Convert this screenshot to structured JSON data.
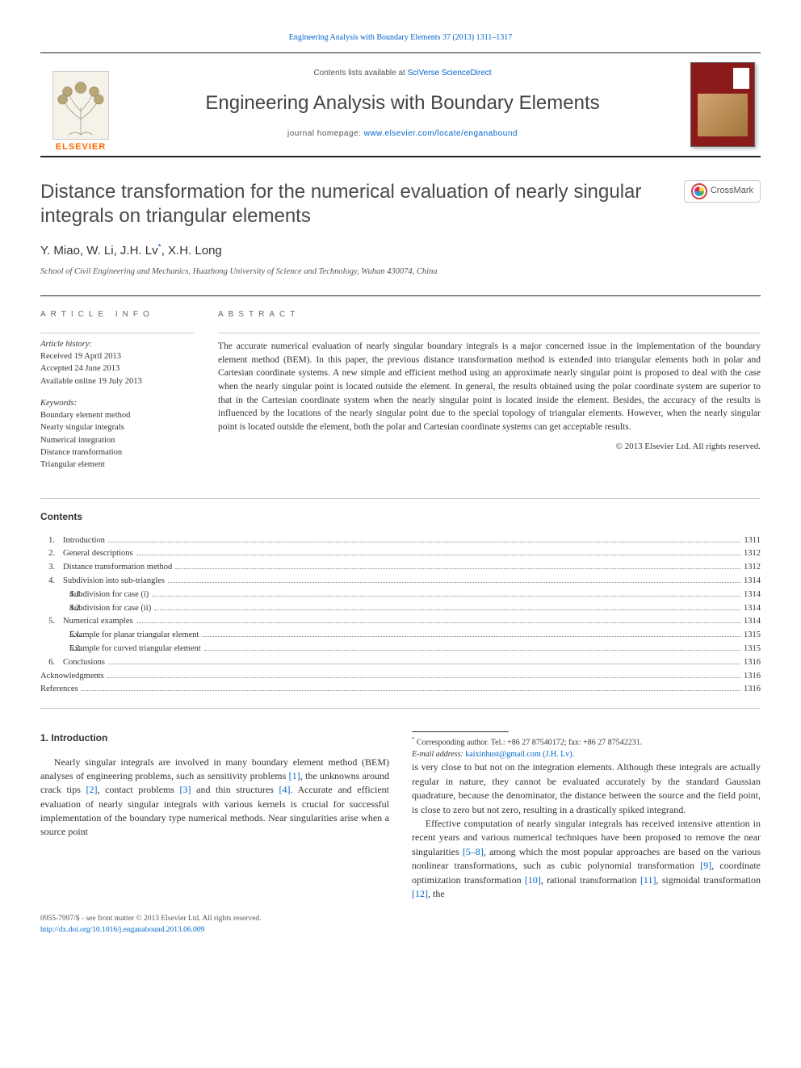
{
  "citation_line": "Engineering Analysis with Boundary Elements 37 (2013) 1311–1317",
  "header": {
    "contents_available": "Contents lists available at",
    "contents_link": "SciVerse ScienceDirect",
    "journal_name": "Engineering Analysis with Boundary Elements",
    "homepage_label": "journal homepage:",
    "homepage_url": "www.elsevier.com/locate/enganabound",
    "publisher": "ELSEVIER"
  },
  "crossmark_label": "CrossMark",
  "title": "Distance transformation for the numerical evaluation of nearly singular integrals on triangular elements",
  "authors": "Y. Miao, W. Li, J.H. Lv",
  "author_last": ", X.H. Long",
  "corr_mark": "*",
  "affiliation": "School of Civil Engineering and Mechanics, Huazhong University of Science and Technology, Wuhan 430074, China",
  "info": {
    "section_label": "ARTICLE INFO",
    "history_label": "Article history:",
    "received": "Received 19 April 2013",
    "accepted": "Accepted 24 June 2013",
    "online": "Available online 19 July 2013",
    "keywords_label": "Keywords:",
    "keywords": [
      "Boundary element method",
      "Nearly singular integrals",
      "Numerical integration",
      "Distance transformation",
      "Triangular element"
    ]
  },
  "abstract": {
    "section_label": "ABSTRACT",
    "text": "The accurate numerical evaluation of nearly singular boundary integrals is a major concerned issue in the implementation of the boundary element method (BEM). In this paper, the previous distance transformation method is extended into triangular elements both in polar and Cartesian coordinate systems. A new simple and efficient method using an approximate nearly singular point is proposed to deal with the case when the nearly singular point is located outside the element. In general, the results obtained using the polar coordinate system are superior to that in the Cartesian coordinate system when the nearly singular point is located inside the element. Besides, the accuracy of the results is influenced by the locations of the nearly singular point due to the special topology of triangular elements. However, when the nearly singular point is located outside the element, both the polar and Cartesian coordinate systems can get acceptable results.",
    "copyright": "© 2013 Elsevier Ltd. All rights reserved."
  },
  "toc": {
    "heading": "Contents",
    "items": [
      {
        "num": "1.",
        "label": "Introduction",
        "page": "1311",
        "level": 0
      },
      {
        "num": "2.",
        "label": "General descriptions",
        "page": "1312",
        "level": 0
      },
      {
        "num": "3.",
        "label": "Distance transformation method",
        "page": "1312",
        "level": 0
      },
      {
        "num": "4.",
        "label": "Subdivision into sub-triangles",
        "page": "1314",
        "level": 0
      },
      {
        "num": "4.1.",
        "label": "Subdivision for case (i)",
        "page": "1314",
        "level": 1
      },
      {
        "num": "4.2.",
        "label": "Subdivision for case (ii)",
        "page": "1314",
        "level": 1
      },
      {
        "num": "5.",
        "label": "Numerical examples",
        "page": "1314",
        "level": 0
      },
      {
        "num": "5.1.",
        "label": "Example for planar triangular element",
        "page": "1315",
        "level": 1
      },
      {
        "num": "5.2.",
        "label": "Example for curved triangular element",
        "page": "1315",
        "level": 1
      },
      {
        "num": "6.",
        "label": "Conclusions",
        "page": "1316",
        "level": 0
      },
      {
        "num": "",
        "label": "Acknowledgments",
        "page": "1316",
        "level": 0
      },
      {
        "num": "",
        "label": "References",
        "page": "1316",
        "level": 0
      }
    ]
  },
  "body": {
    "heading": "1.  Introduction",
    "p1a": "Nearly singular integrals are involved in many boundary element method (BEM) analyses of engineering problems, such as sensitivity problems ",
    "r1": "[1]",
    "p1b": ", the unknowns around crack tips ",
    "r2": "[2]",
    "p1c": ", contact problems ",
    "r3": "[3]",
    "p1d": " and thin structures ",
    "r4": "[4]",
    "p1e": ". Accurate and efficient evaluation of nearly singular integrals with various kernels is crucial for successful implementation of the boundary type numerical methods. Near singularities arise when a source point",
    "p2": "is very close to but not on the integration elements. Although these integrals are actually regular in nature, they cannot be evaluated accurately by the standard Gaussian quadrature, because the denominator, the distance between the source and the field point, is close to zero but not zero, resulting in a drastically spiked integrand.",
    "p3a": "Effective computation of nearly singular integrals has received intensive attention in recent years and various numerical techniques have been proposed to remove the near singularities ",
    "r58": "[5–8]",
    "p3b": ", among which the most popular approaches are based on the various nonlinear transformations, such as cubic polynomial transformation ",
    "r9": "[9]",
    "p3c": ", coordinate optimization transformation ",
    "r10": "[10]",
    "p3d": ", rational transformation ",
    "r11": "[11]",
    "p3e": ", sigmoidal transformation ",
    "r12": "[12]",
    "p3f": ", the"
  },
  "footnotes": {
    "corr": "Corresponding author. Tel.: +86 27 87540172; fax: +86 27 87542231.",
    "email_label": "E-mail address:",
    "email": "kaixinhust@gmail.com (J.H. Lv)."
  },
  "footer": {
    "line1": "0955-7997/$ - see front matter © 2013 Elsevier Ltd. All rights reserved.",
    "line2": "http://dx.doi.org/10.1016/j.enganabound.2013.06.009"
  },
  "colors": {
    "link": "#0066cc",
    "publisher": "#ff6600",
    "cover": "#8b1a1a",
    "rule": "#222222"
  }
}
